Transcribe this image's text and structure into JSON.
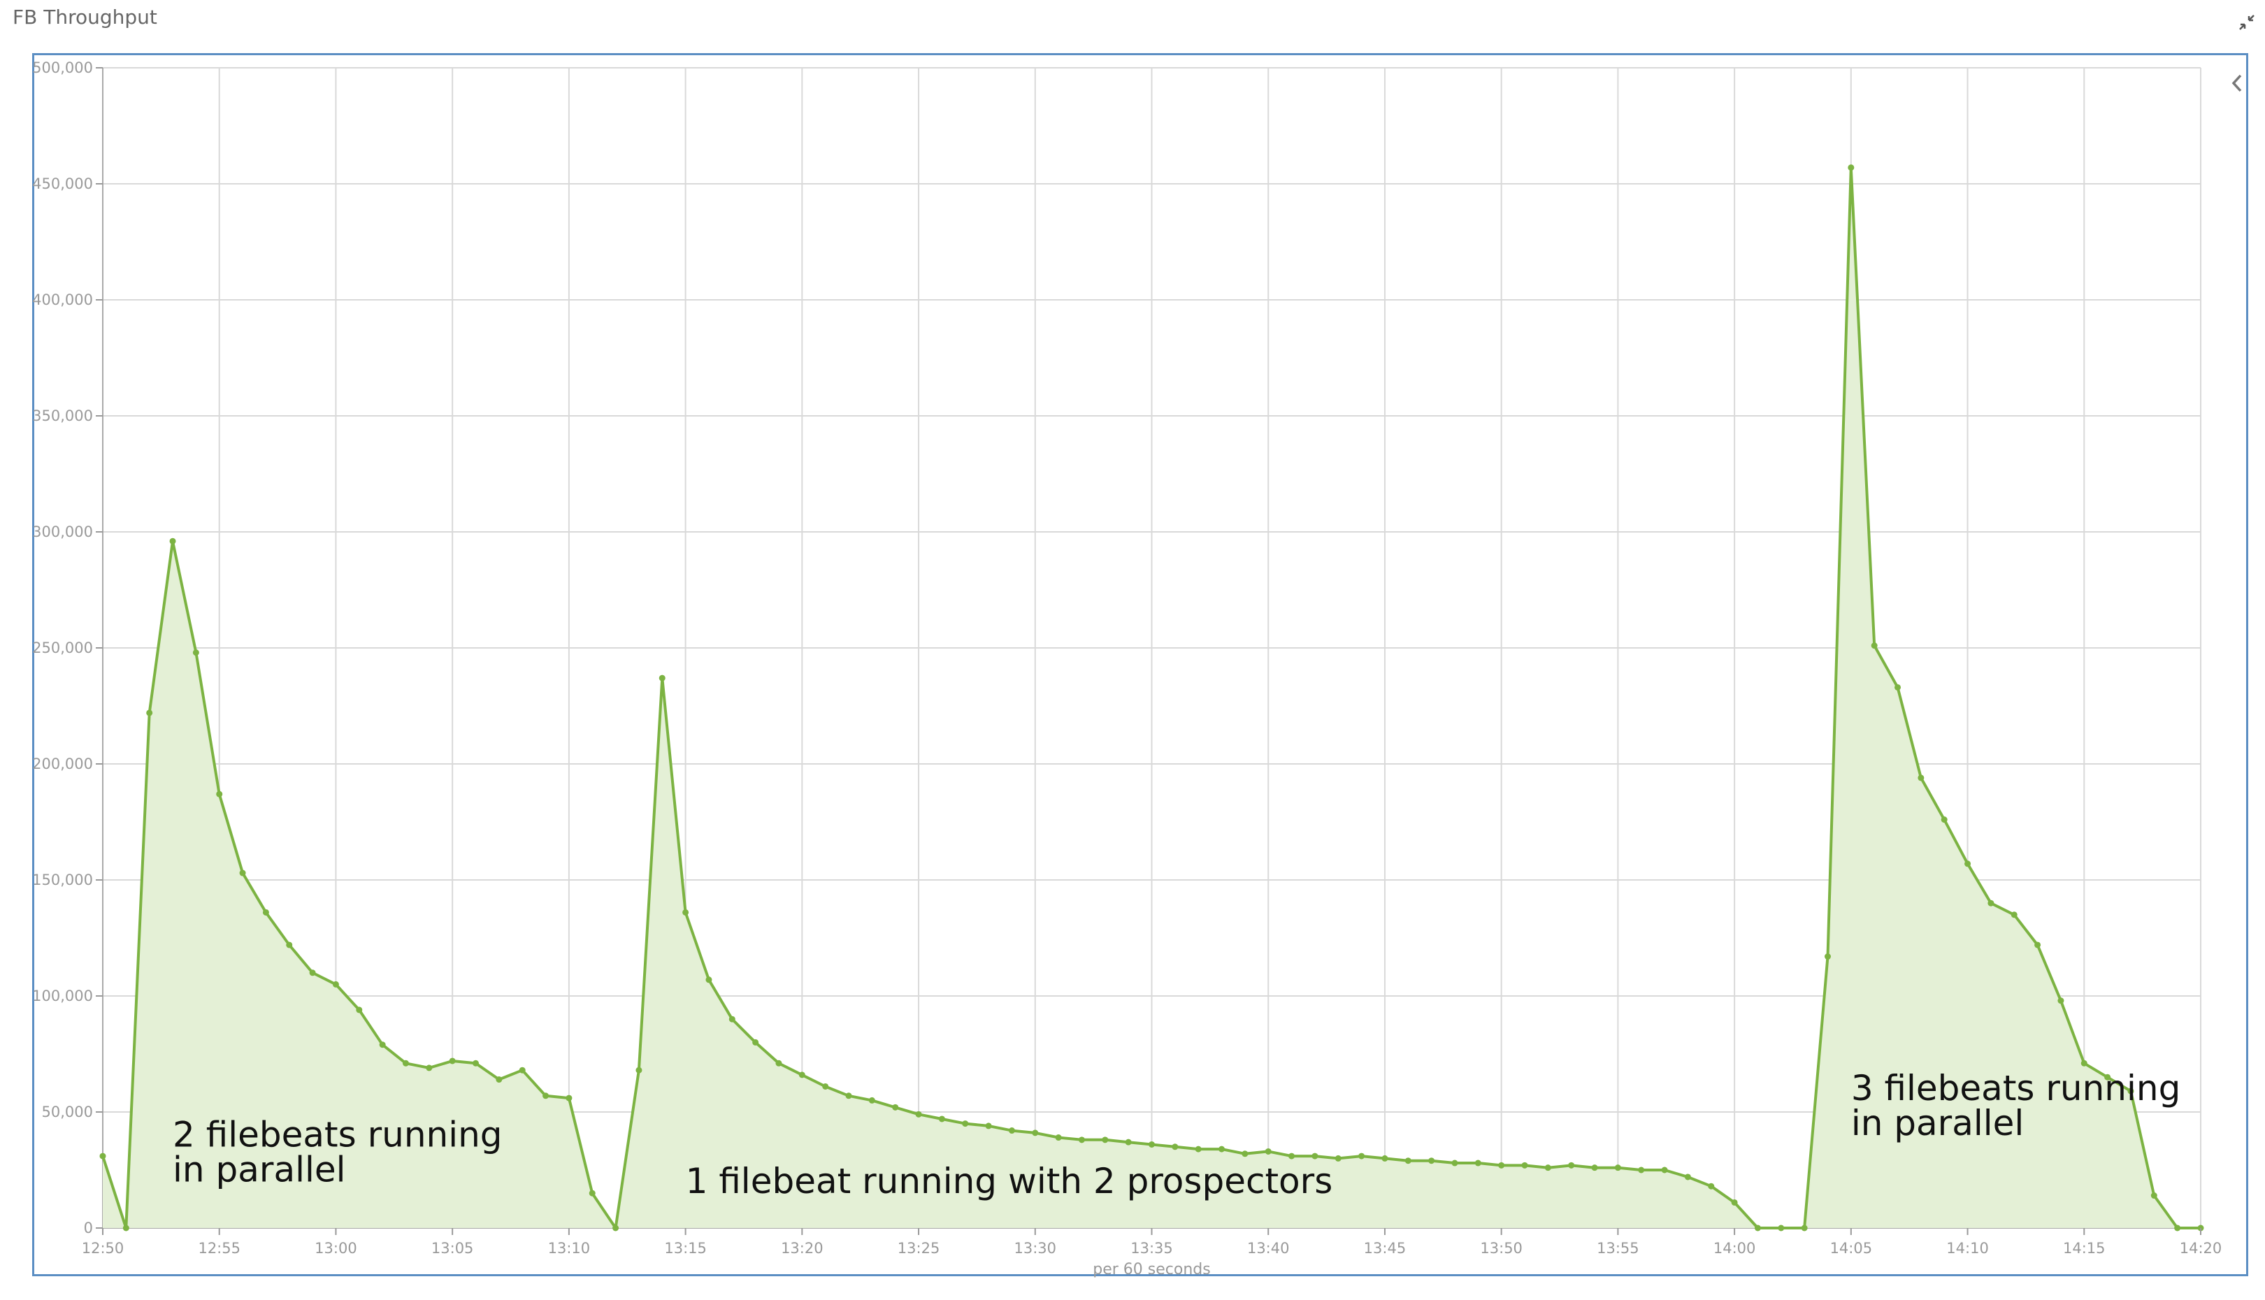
{
  "panel": {
    "title": "FB Throughput"
  },
  "icons": {
    "collapse": "collapse-arrows-icon",
    "sidebar_toggle": "chevron-left-icon"
  },
  "colors": {
    "series": "#7cb342",
    "fill": "#e4f0d6",
    "frame": "#5b8ec3",
    "grid": "#d9d9d9"
  },
  "chart_data": {
    "type": "area",
    "title": "",
    "xlabel": "per 60 seconds",
    "ylabel": "",
    "ylim": [
      0,
      500000
    ],
    "xlim": [
      "12:50",
      "14:20"
    ],
    "grid": true,
    "y_ticks": [
      "0",
      "50,000",
      "100,000",
      "150,000",
      "200,000",
      "250,000",
      "300,000",
      "350,000",
      "400,000",
      "450,000",
      "500,000"
    ],
    "x_ticks": [
      "12:50",
      "12:55",
      "13:00",
      "13:05",
      "13:10",
      "13:15",
      "13:20",
      "13:25",
      "13:30",
      "13:35",
      "13:40",
      "13:45",
      "13:50",
      "13:55",
      "14:00",
      "14:05",
      "14:10",
      "14:15",
      "14:20"
    ],
    "series": [
      {
        "values": [
          [
            "12:50",
            31000
          ],
          [
            "12:51",
            0
          ],
          [
            "12:52",
            222000
          ],
          [
            "12:53",
            296000
          ],
          [
            "12:54",
            248000
          ],
          [
            "12:55",
            187000
          ],
          [
            "12:56",
            153000
          ],
          [
            "12:57",
            136000
          ],
          [
            "12:58",
            122000
          ],
          [
            "12:59",
            110000
          ],
          [
            "13:00",
            105000
          ],
          [
            "13:01",
            94000
          ],
          [
            "13:02",
            79000
          ],
          [
            "13:03",
            71000
          ],
          [
            "13:04",
            69000
          ],
          [
            "13:05",
            72000
          ],
          [
            "13:06",
            71000
          ],
          [
            "13:07",
            64000
          ],
          [
            "13:08",
            68000
          ],
          [
            "13:09",
            57000
          ],
          [
            "13:10",
            56000
          ],
          [
            "13:11",
            15000
          ],
          [
            "13:12",
            0
          ],
          [
            "13:13",
            68000
          ],
          [
            "13:14",
            237000
          ],
          [
            "13:15",
            136000
          ],
          [
            "13:16",
            107000
          ],
          [
            "13:17",
            90000
          ],
          [
            "13:18",
            80000
          ],
          [
            "13:19",
            71000
          ],
          [
            "13:20",
            66000
          ],
          [
            "13:21",
            61000
          ],
          [
            "13:22",
            57000
          ],
          [
            "13:23",
            55000
          ],
          [
            "13:24",
            52000
          ],
          [
            "13:25",
            49000
          ],
          [
            "13:26",
            47000
          ],
          [
            "13:27",
            45000
          ],
          [
            "13:28",
            44000
          ],
          [
            "13:29",
            42000
          ],
          [
            "13:30",
            41000
          ],
          [
            "13:31",
            39000
          ],
          [
            "13:32",
            38000
          ],
          [
            "13:33",
            38000
          ],
          [
            "13:34",
            37000
          ],
          [
            "13:35",
            36000
          ],
          [
            "13:36",
            35000
          ],
          [
            "13:37",
            34000
          ],
          [
            "13:38",
            34000
          ],
          [
            "13:39",
            32000
          ],
          [
            "13:40",
            33000
          ],
          [
            "13:41",
            31000
          ],
          [
            "13:42",
            31000
          ],
          [
            "13:43",
            30000
          ],
          [
            "13:44",
            31000
          ],
          [
            "13:45",
            30000
          ],
          [
            "13:46",
            29000
          ],
          [
            "13:47",
            29000
          ],
          [
            "13:48",
            28000
          ],
          [
            "13:49",
            28000
          ],
          [
            "13:50",
            27000
          ],
          [
            "13:51",
            27000
          ],
          [
            "13:52",
            26000
          ],
          [
            "13:53",
            27000
          ],
          [
            "13:54",
            26000
          ],
          [
            "13:55",
            26000
          ],
          [
            "13:56",
            25000
          ],
          [
            "13:57",
            25000
          ],
          [
            "13:58",
            22000
          ],
          [
            "13:59",
            18000
          ],
          [
            "14:00",
            11000
          ],
          [
            "14:01",
            0
          ],
          [
            "14:02",
            0
          ],
          [
            "14:03",
            0
          ],
          [
            "14:04",
            117000
          ],
          [
            "14:05",
            457000
          ],
          [
            "14:06",
            251000
          ],
          [
            "14:07",
            233000
          ],
          [
            "14:08",
            194000
          ],
          [
            "14:09",
            176000
          ],
          [
            "14:10",
            157000
          ],
          [
            "14:11",
            140000
          ],
          [
            "14:12",
            135000
          ],
          [
            "14:13",
            122000
          ],
          [
            "14:14",
            98000
          ],
          [
            "14:15",
            71000
          ],
          [
            "14:16",
            65000
          ],
          [
            "14:17",
            59000
          ],
          [
            "14:18",
            14000
          ],
          [
            "14:19",
            0
          ],
          [
            "14:20",
            0
          ]
        ]
      }
    ],
    "annotations": [
      {
        "lines": [
          "2 filebeats running",
          "in parallel"
        ],
        "at": [
          "12:53",
          20000
        ]
      },
      {
        "lines": [
          "1 filebeat running with 2 prospectors"
        ],
        "at": [
          "13:15",
          15000
        ]
      },
      {
        "lines": [
          "3 filebeats running",
          "in parallel"
        ],
        "at": [
          "14:05",
          40000
        ]
      }
    ]
  }
}
